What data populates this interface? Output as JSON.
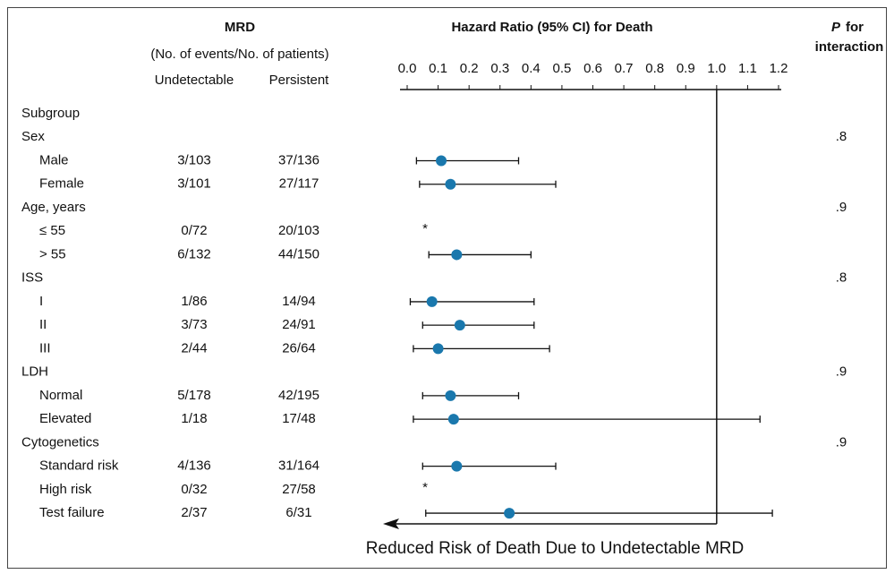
{
  "chart_data": {
    "type": "forest",
    "headers": {
      "mrd": "MRD",
      "events": "(No. of events/No. of patients)",
      "undetectable": "Undetectable",
      "persistent": "Persistent",
      "hr": "Hazard Ratio (95% CI) for Death",
      "p_italic": "P",
      "p_for": "for",
      "p_interaction": "interaction"
    },
    "xlim": [
      0,
      1.2
    ],
    "xticks": [
      {
        "value": 0,
        "label": "0.0"
      },
      0.1,
      0.2,
      0.3,
      0.4,
      0.5,
      0.6,
      0.7,
      0.8,
      0.9,
      {
        "value": 1,
        "label": "1.0"
      },
      1.1,
      1.2
    ],
    "reference": 1,
    "color": "#1a78ad",
    "footer": "Reduced Risk of Death Due to Undetectable MRD",
    "rows": [
      {
        "label": "Subgroup",
        "level": 0
      },
      {
        "label": "Sex",
        "level": 0,
        "p": ".8"
      },
      {
        "label": "Male",
        "level": 1,
        "undetectable": "3/103",
        "persistent": "37/136",
        "hr": 0.11,
        "lo": 0.03,
        "hi": 0.36
      },
      {
        "label": "Female",
        "level": 1,
        "undetectable": "3/101",
        "persistent": "27/117",
        "hr": 0.14,
        "lo": 0.04,
        "hi": 0.48
      },
      {
        "label": "Age, years",
        "level": 0,
        "p": ".9"
      },
      {
        "label": "≤ 55",
        "level": 1,
        "undetectable": "0/72",
        "persistent": "20/103",
        "marker": "*"
      },
      {
        "label": "> 55",
        "level": 1,
        "undetectable": "6/132",
        "persistent": "44/150",
        "hr": 0.16,
        "lo": 0.07,
        "hi": 0.4
      },
      {
        "label": "ISS",
        "level": 0,
        "p": ".8"
      },
      {
        "label": "I",
        "level": 1,
        "undetectable": "1/86",
        "persistent": "14/94",
        "hr": 0.08,
        "lo": 0.01,
        "hi": 0.41
      },
      {
        "label": "II",
        "level": 1,
        "undetectable": "3/73",
        "persistent": "24/91",
        "hr": 0.17,
        "lo": 0.05,
        "hi": 0.41
      },
      {
        "label": "III",
        "level": 1,
        "undetectable": "2/44",
        "persistent": "26/64",
        "hr": 0.1,
        "lo": 0.02,
        "hi": 0.46
      },
      {
        "label": "LDH",
        "level": 0,
        "p": ".9"
      },
      {
        "label": "Normal",
        "level": 1,
        "undetectable": "5/178",
        "persistent": "42/195",
        "hr": 0.14,
        "lo": 0.05,
        "hi": 0.36
      },
      {
        "label": "Elevated",
        "level": 1,
        "undetectable": "1/18",
        "persistent": "17/48",
        "hr": 0.15,
        "lo": 0.02,
        "hi": 1.14
      },
      {
        "label": "Cytogenetics",
        "level": 0,
        "p": ".9"
      },
      {
        "label": "Standard risk",
        "level": 1,
        "undetectable": "4/136",
        "persistent": "31/164",
        "hr": 0.16,
        "lo": 0.05,
        "hi": 0.48
      },
      {
        "label": "High risk",
        "level": 1,
        "undetectable": "0/32",
        "persistent": "27/58",
        "marker": "*"
      },
      {
        "label": "Test failure",
        "level": 1,
        "undetectable": "2/37",
        "persistent": "6/31",
        "hr": 0.33,
        "lo": 0.06,
        "hi": 1.18
      }
    ]
  }
}
